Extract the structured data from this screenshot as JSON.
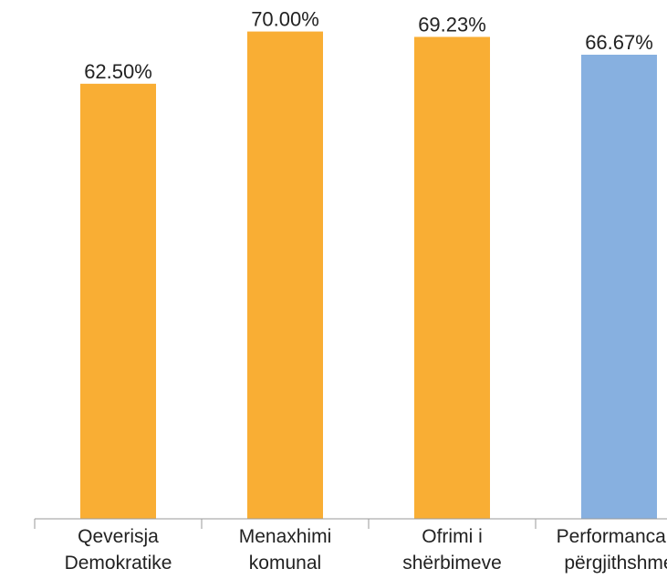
{
  "chart_data": {
    "type": "bar",
    "categories": [
      [
        "Qeverisja",
        "Demokratike"
      ],
      [
        "Menaxhimi",
        "komunal"
      ],
      [
        "Ofrimi i",
        "shërbimeve"
      ],
      [
        "Performanca e",
        "përgjithshme"
      ]
    ],
    "values": [
      62.5,
      70.0,
      69.23,
      66.67
    ],
    "data_labels": [
      "62.50%",
      "70.00%",
      "69.23%",
      "66.67%"
    ],
    "bar_colors": [
      "#f9ae34",
      "#f9ae34",
      "#f9ae34",
      "#87b0e0"
    ],
    "ylim": [
      0,
      70.6
    ],
    "grid": false,
    "legend": "none",
    "title": "",
    "xlabel": "",
    "ylabel": ""
  }
}
